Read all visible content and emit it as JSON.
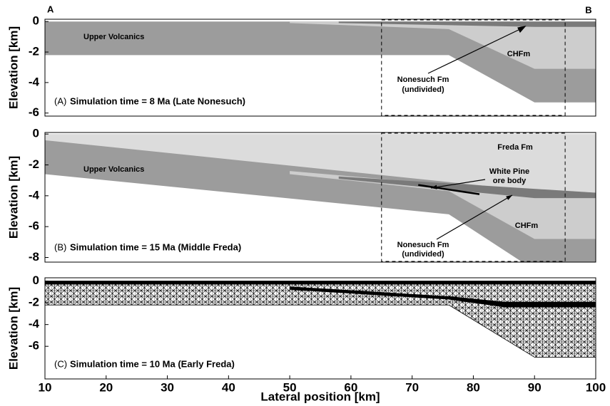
{
  "chart_data": [
    {
      "type": "section",
      "section_ends": [
        "A",
        "B"
      ],
      "panel_label": "(A)",
      "title": "Simulation time = 8 Ma (Late Nonesuch)",
      "ylabel": "Elevation [km]",
      "xlim": [
        10,
        100
      ],
      "ylim": [
        -6.2,
        0.15
      ],
      "yticks": [
        0,
        -2,
        -4,
        -6
      ],
      "box_x": [
        65,
        95
      ],
      "regions": [
        {
          "x": [
            10,
            100,
            100,
            90,
            76,
            10
          ],
          "values": [
            0,
            0,
            -5.3,
            -5.3,
            -2.2,
            -2.2
          ],
          "color": "#9c9c9c"
        },
        {
          "x": [
            50,
            100,
            100,
            90,
            76,
            50
          ],
          "values": [
            0,
            0,
            -3.1,
            -3.1,
            -0.5,
            -0.1
          ],
          "color": "#cdcdcd"
        },
        {
          "x": [
            58,
            100,
            100,
            90,
            58
          ],
          "values": [
            0,
            0,
            -0.35,
            -0.35,
            -0.1
          ],
          "color": "#7a7a7a"
        }
      ],
      "annotations": [
        "Upper Volcanics",
        "CHFm",
        "Nonesuch Fm",
        "(undivided)"
      ]
    },
    {
      "type": "section",
      "panel_label": "(B)",
      "title": "Simulation time = 15 Ma (Middle Freda)",
      "ylabel": "Elevation [km]",
      "xlim": [
        10,
        100
      ],
      "ylim": [
        -8.3,
        0.1
      ],
      "yticks": [
        0,
        -2,
        -4,
        -6,
        -8
      ],
      "box_x": [
        65,
        95
      ],
      "regions": [
        {
          "x": [
            10,
            100,
            100,
            58,
            50,
            10
          ],
          "values": [
            0,
            0,
            -3.8,
            -2.8,
            -2.4,
            -0.4
          ],
          "color": "#dcdcdc"
        },
        {
          "x": [
            10,
            100,
            100,
            88,
            76,
            10
          ],
          "values": [
            -0.4,
            -4.1,
            -8.3,
            -8.3,
            -5.2,
            -2.6
          ],
          "color": "#9c9c9c"
        },
        {
          "x": [
            50,
            100,
            100,
            90,
            76,
            50
          ],
          "values": [
            -2.4,
            -4.1,
            -6.8,
            -6.8,
            -3.7,
            -2.6
          ],
          "color": "#cdcdcd"
        },
        {
          "x": [
            58,
            100,
            100,
            90,
            58
          ],
          "values": [
            -2.75,
            -3.8,
            -4.15,
            -4.15,
            -2.9
          ],
          "color": "#7a7a7a"
        }
      ],
      "ore_body": {
        "x": [
          71,
          81
        ],
        "values": [
          -3.3,
          -3.9
        ],
        "color": "#000000"
      },
      "annotations": [
        "Freda Fm",
        "Upper Volcanics",
        "White Pine",
        "ore body",
        "Nonesuch Fm",
        "(undivided)",
        "CHFm"
      ]
    },
    {
      "type": "section",
      "panel_label": "(C)",
      "title": "Simulation time = 10 Ma (Early Freda)",
      "ylabel": "Elevation [km]",
      "xlabel": "Lateral position [km]",
      "xlim": [
        10,
        100
      ],
      "ylim": [
        -9,
        0.3
      ],
      "yticks": [
        0,
        -2,
        -4,
        -6
      ],
      "xticks": [
        10,
        20,
        30,
        40,
        50,
        60,
        70,
        80,
        90,
        100
      ],
      "regions": [
        {
          "x": [
            10,
            100,
            100,
            90,
            76,
            10
          ],
          "values": [
            0,
            0,
            -7,
            -7,
            -2.2,
            -2.2
          ],
          "color": "#000000",
          "mesh": true
        },
        {
          "x": [
            10,
            100,
            100,
            10
          ],
          "values": [
            0,
            0,
            -0.3,
            -0.3
          ],
          "color": "#000000"
        },
        {
          "x": [
            50,
            76,
            85,
            100,
            100,
            85,
            76,
            50
          ],
          "values": [
            -0.5,
            -1.4,
            -1.9,
            -1.9,
            -2.4,
            -2.4,
            -1.7,
            -0.8
          ],
          "color": "#000000"
        }
      ],
      "annotations": []
    }
  ]
}
